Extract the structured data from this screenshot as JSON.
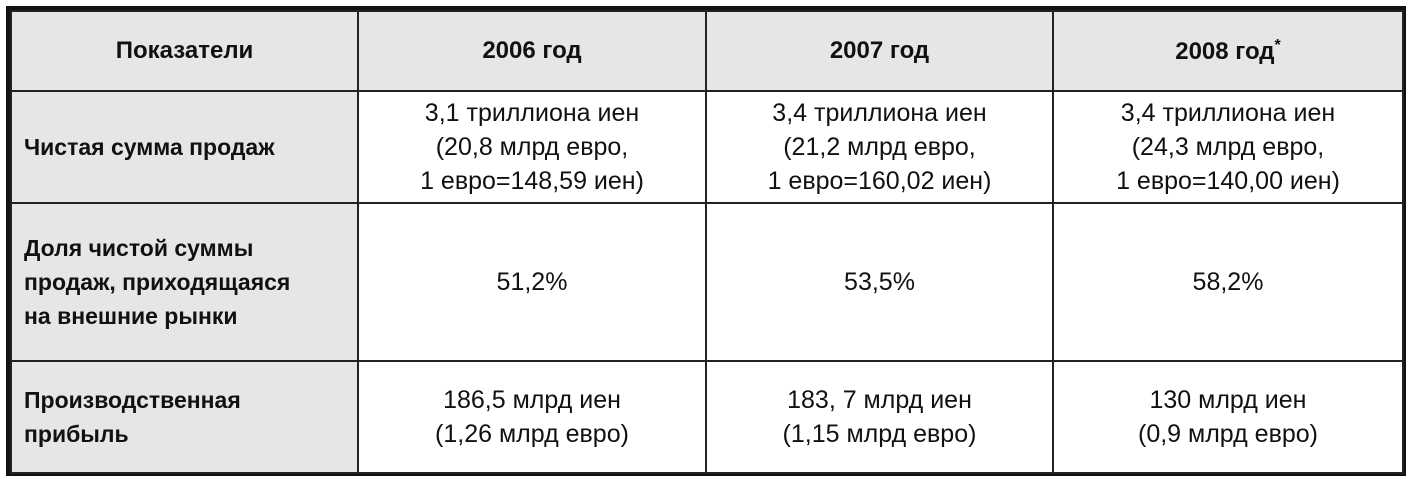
{
  "table": {
    "header": [
      "Показатели",
      "2006 год",
      "2007 год",
      "2008 год"
    ],
    "header_note": "*",
    "rows": [
      {
        "label": [
          "Чистая сумма продаж"
        ],
        "cells": [
          [
            "3,1 триллиона иен",
            "(20,8 млрд евро,",
            "1 евро=148,59 иен)"
          ],
          [
            "3,4 триллиона иен",
            "(21,2 млрд евро,",
            "1 евро=160,02 иен)"
          ],
          [
            "3,4 триллиона иен",
            "(24,3 млрд евро,",
            "1 евро=140,00 иен)"
          ]
        ]
      },
      {
        "label": [
          "Доля чистой суммы",
          "продаж, приходящаяся",
          "на внешние рынки"
        ],
        "cells": [
          [
            "51,2%"
          ],
          [
            "53,5%"
          ],
          [
            "58,2%"
          ]
        ]
      },
      {
        "label": [
          "Производственная",
          "прибыль"
        ],
        "cells": [
          [
            "186,5 млрд иен",
            "(1,26 млрд евро)"
          ],
          [
            "183, 7 млрд иен",
            "(1,15 млрд евро)"
          ],
          [
            "130 млрд иен",
            "(0,9 млрд евро)"
          ]
        ]
      }
    ]
  }
}
